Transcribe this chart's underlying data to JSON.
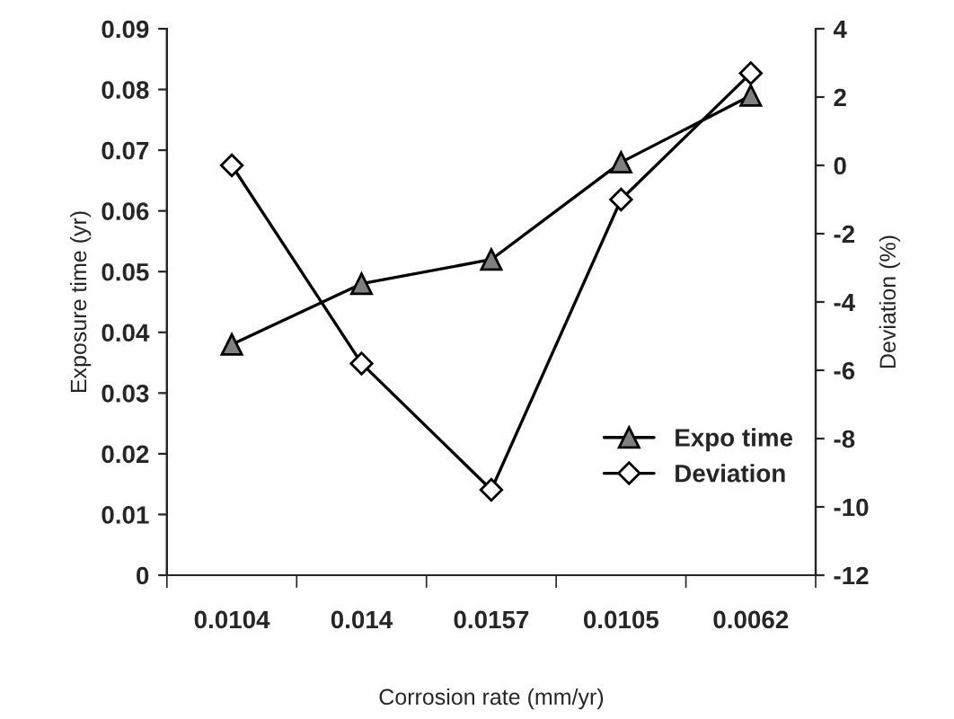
{
  "chart_data": {
    "type": "line",
    "xlabel": "Corrosion rate (mm/yr)",
    "ylabel": "Exposure time (yr)",
    "y2label": "Deviation (%)",
    "categories": [
      "0.0104",
      "0.014",
      "0.0157",
      "0.0105",
      "0.0062"
    ],
    "series": [
      {
        "name": "Expo time",
        "color": "#000000",
        "values": [
          0.038,
          0.048,
          0.052,
          0.068,
          0.079
        ],
        "marker": "triangle"
      },
      {
        "name": "Deviation",
        "color": "#000000",
        "values": [
          0,
          -5.8,
          -9.5,
          -1,
          2.7
        ],
        "marker": "diamond",
        "axis": "y2"
      }
    ],
    "ylim": [
      0,
      0.09
    ],
    "yticks": [
      0,
      0.01,
      0.02,
      0.03,
      0.04,
      0.05,
      0.06,
      0.07,
      0.08,
      0.09
    ],
    "y2lim": [
      -12,
      4
    ],
    "y2ticks": [
      -12,
      -10,
      -8,
      -6,
      -4,
      -2,
      0,
      2,
      4
    ],
    "legend": "bottom right",
    "grid": false,
    "line_style": "solid"
  }
}
